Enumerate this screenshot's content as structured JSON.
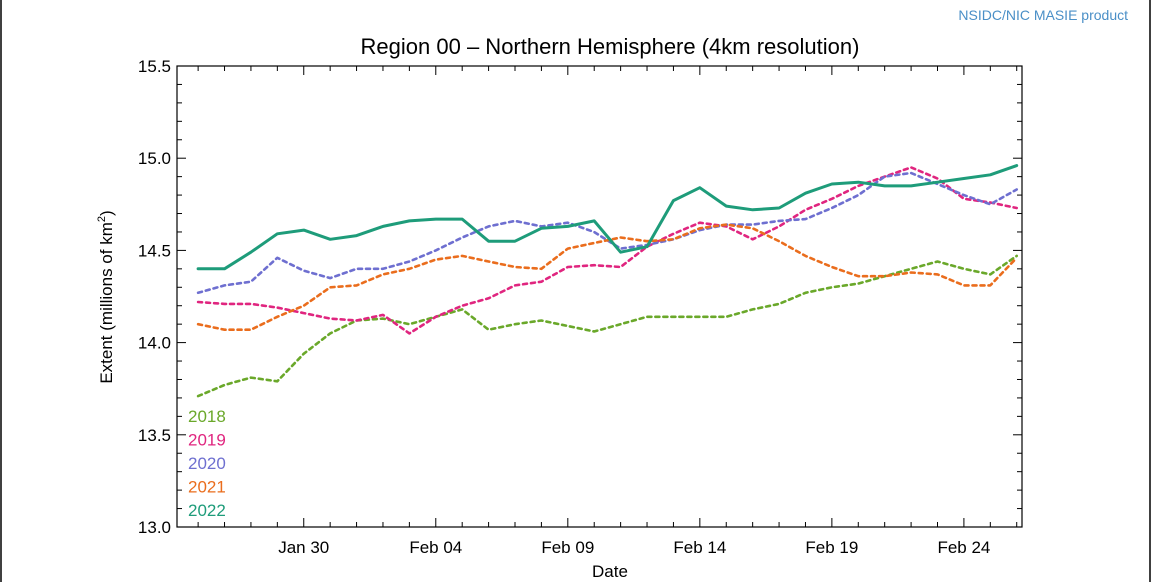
{
  "credit": "NSIDC/NIC MASIE product",
  "chart_data": {
    "type": "line",
    "title": "Region 00 – Northern Hemisphere (4km resolution)",
    "xlabel": "Date",
    "ylabel_main": "Extent (millions of km",
    "ylabel_sup": "2",
    "ylabel_close": ")",
    "x_tick_labels": [
      "Jan 30",
      "Feb 04",
      "Feb 09",
      "Feb 14",
      "Feb 19",
      "Feb 24"
    ],
    "x_tick_days": [
      30,
      35,
      40,
      45,
      50,
      55
    ],
    "xlim_days": [
      25.2,
      57.2
    ],
    "ylim": [
      13.0,
      15.5
    ],
    "y_ticks": [
      "13.0",
      "13.5",
      "14.0",
      "14.5",
      "15.0",
      "15.5"
    ],
    "y_tick_values": [
      13.0,
      13.5,
      14.0,
      14.5,
      15.0,
      15.5
    ],
    "x_days": [
      26,
      27,
      28,
      29,
      30,
      31,
      32,
      33,
      34,
      35,
      36,
      37,
      38,
      39,
      40,
      41,
      42,
      43,
      44,
      45,
      46,
      47,
      48,
      49,
      50,
      51,
      52,
      53,
      54,
      55,
      56,
      57
    ],
    "series": [
      {
        "name": "2018",
        "color": "#6aa82a",
        "dashed": true,
        "values": [
          13.71,
          13.77,
          13.81,
          13.79,
          13.94,
          14.05,
          14.12,
          14.13,
          14.1,
          14.14,
          14.18,
          14.07,
          14.1,
          14.12,
          14.09,
          14.06,
          14.1,
          14.14,
          14.14,
          14.14,
          14.14,
          14.18,
          14.21,
          14.27,
          14.3,
          14.32,
          14.36,
          14.4,
          14.44,
          14.4,
          14.37,
          14.47
        ]
      },
      {
        "name": "2019",
        "color": "#e0257f",
        "dashed": true,
        "values": [
          14.22,
          14.21,
          14.21,
          14.19,
          14.16,
          14.13,
          14.12,
          14.15,
          14.05,
          14.14,
          14.2,
          14.24,
          14.31,
          14.33,
          14.41,
          14.42,
          14.41,
          14.52,
          14.59,
          14.65,
          14.63,
          14.56,
          14.63,
          14.72,
          14.78,
          14.85,
          14.9,
          14.95,
          14.89,
          14.78,
          14.76,
          14.73
        ]
      },
      {
        "name": "2020",
        "color": "#6e6fd0",
        "dashed": true,
        "values": [
          14.27,
          14.31,
          14.33,
          14.46,
          14.39,
          14.35,
          14.4,
          14.4,
          14.44,
          14.5,
          14.57,
          14.63,
          14.66,
          14.63,
          14.65,
          14.6,
          14.51,
          14.53,
          14.56,
          14.61,
          14.64,
          14.64,
          14.66,
          14.67,
          14.73,
          14.8,
          14.9,
          14.92,
          14.86,
          14.8,
          14.75,
          14.83
        ]
      },
      {
        "name": "2021",
        "color": "#ea6d1d",
        "dashed": true,
        "values": [
          14.1,
          14.07,
          14.07,
          14.14,
          14.2,
          14.3,
          14.31,
          14.37,
          14.4,
          14.45,
          14.47,
          14.44,
          14.41,
          14.4,
          14.51,
          14.54,
          14.57,
          14.55,
          14.56,
          14.62,
          14.64,
          14.62,
          14.55,
          14.47,
          14.41,
          14.36,
          14.36,
          14.38,
          14.37,
          14.31,
          14.31,
          14.46
        ]
      },
      {
        "name": "2022",
        "color": "#1e9c7a",
        "dashed": false,
        "values": [
          14.4,
          14.4,
          14.49,
          14.59,
          14.61,
          14.56,
          14.58,
          14.63,
          14.66,
          14.67,
          14.67,
          14.55,
          14.55,
          14.62,
          14.63,
          14.66,
          14.49,
          14.52,
          14.77,
          14.84,
          14.74,
          14.72,
          14.73,
          14.81,
          14.86,
          14.87,
          14.85,
          14.85,
          14.87,
          14.89,
          14.91,
          14.96
        ]
      }
    ]
  }
}
